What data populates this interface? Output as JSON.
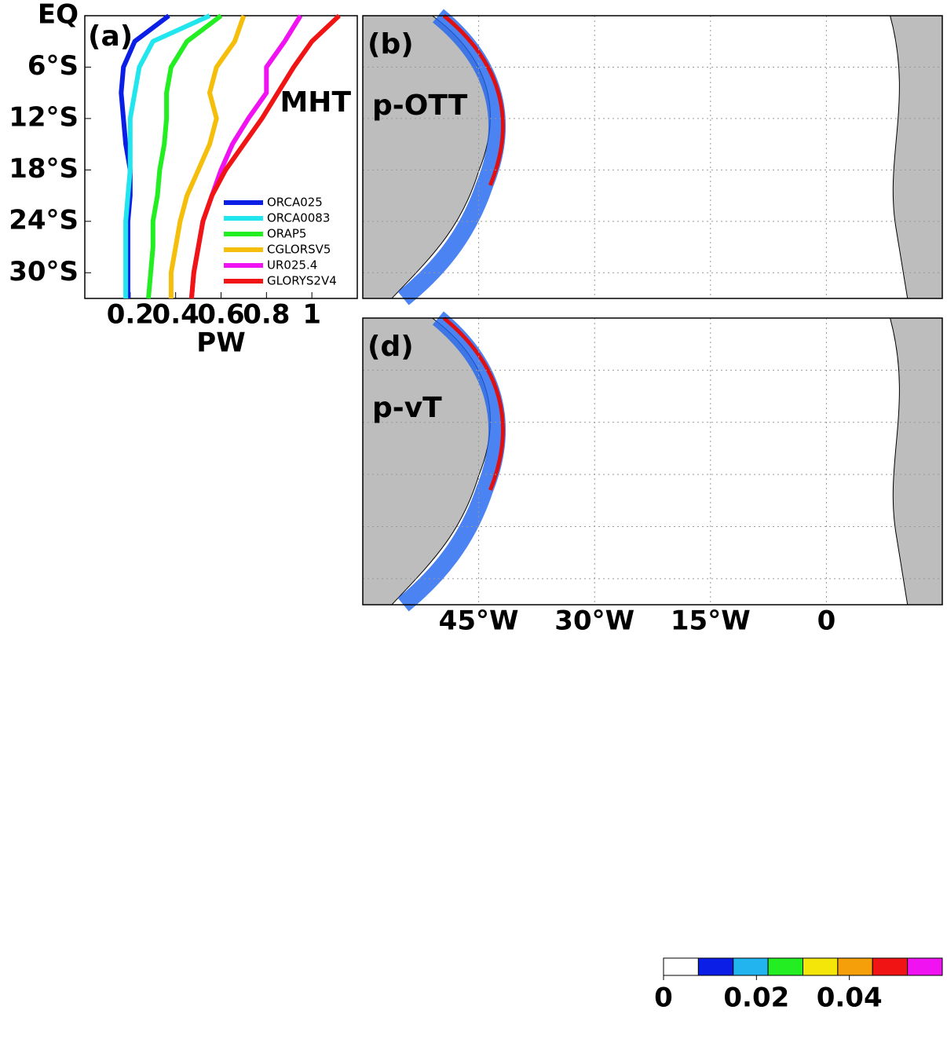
{
  "chart_data": [
    {
      "type": "line",
      "label": "(a)",
      "annotation": "MHT",
      "xlabel": "PW",
      "lat": [
        0,
        -3,
        -6,
        -9,
        -12,
        -15,
        -18,
        -21,
        -24,
        -27,
        -30,
        -33
      ],
      "series": [
        {
          "name": "ORCA025",
          "color": "#0a1ee6",
          "values": [
            0.37,
            0.22,
            0.17,
            0.16,
            0.17,
            0.18,
            0.2,
            0.2,
            0.19,
            0.19,
            0.19,
            0.19
          ]
        },
        {
          "name": "ORCA0083",
          "color": "#22e6ee",
          "values": [
            0.55,
            0.3,
            0.24,
            0.22,
            0.2,
            0.2,
            0.2,
            0.19,
            0.18,
            0.18,
            0.18,
            0.18
          ]
        },
        {
          "name": "ORAP5",
          "color": "#22ee22",
          "values": [
            0.6,
            0.45,
            0.38,
            0.36,
            0.36,
            0.35,
            0.33,
            0.32,
            0.3,
            0.3,
            0.29,
            0.28
          ]
        },
        {
          "name": "CGLORSV5",
          "color": "#f5be0a",
          "values": [
            0.7,
            0.66,
            0.58,
            0.55,
            0.58,
            0.55,
            0.5,
            0.45,
            0.42,
            0.4,
            0.38,
            0.38
          ]
        },
        {
          "name": "UR025.4",
          "color": "#f012f0",
          "values": [
            0.95,
            0.88,
            0.8,
            0.8,
            0.72,
            0.65,
            0.6,
            0.56,
            0.52,
            0.5,
            0.48,
            0.47
          ]
        },
        {
          "name": "GLORYS2V4",
          "color": "#f01414",
          "values": [
            1.12,
            1.0,
            0.92,
            0.85,
            0.78,
            0.7,
            0.62,
            0.56,
            0.52,
            0.5,
            0.48,
            0.47
          ]
        }
      ],
      "xlim": [
        0,
        1.2
      ],
      "xticks": [
        0.2,
        0.4,
        0.6,
        0.8,
        1
      ],
      "ylim": [
        -33,
        0
      ],
      "yticks": [
        {
          "value": 0,
          "label": "EQ"
        },
        {
          "value": -6,
          "label": "6°S"
        },
        {
          "value": -12,
          "label": "12°S"
        },
        {
          "value": -18,
          "label": "18°S"
        },
        {
          "value": -24,
          "label": "24°S"
        },
        {
          "value": -30,
          "label": "30°S"
        }
      ]
    },
    {
      "type": "map",
      "label": "(b)",
      "annotation": "p-OTT",
      "xlim": [
        -60,
        15
      ],
      "xticks": [
        {
          "value": -45,
          "label": "45°W"
        },
        {
          "value": -30,
          "label": "30°W"
        },
        {
          "value": -15,
          "label": "15°W"
        },
        0
      ],
      "ylim": [
        -33,
        0
      ],
      "yticks": [
        0,
        -6,
        -12,
        -18,
        -24,
        -30
      ]
    },
    {
      "type": "map",
      "label": "(d)",
      "annotation": "p-vT",
      "xlim": [
        -60,
        15
      ],
      "xticks": [
        {
          "value": -45,
          "label": "45°W"
        },
        {
          "value": -30,
          "label": "30°W"
        },
        {
          "value": -15,
          "label": "15°W"
        },
        0
      ],
      "ylim": [
        -33,
        0
      ],
      "yticks": [
        0,
        -6,
        -12,
        -18,
        -24,
        -30
      ]
    },
    {
      "type": "colorbar",
      "colors": [
        "#ffffff",
        "#0a1ee6",
        "#22b4ee",
        "#22ee22",
        "#f5e60a",
        "#f5a00a",
        "#f01414",
        "#f012f0"
      ],
      "xlim": [
        0,
        0.06
      ],
      "xticks": [
        0,
        0.02,
        0.04
      ]
    }
  ]
}
